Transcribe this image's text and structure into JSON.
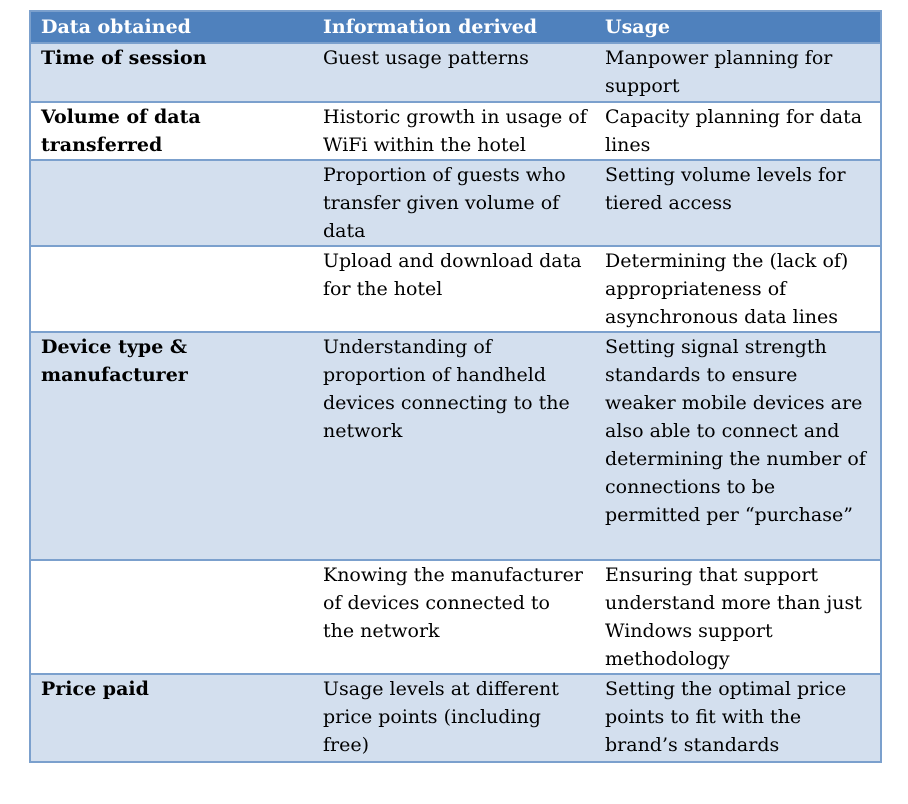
{
  "headers": [
    "Data obtained",
    "Information derived",
    "Usage"
  ],
  "rows": [
    {
      "data": "Time of session",
      "info": "Guest usage patterns",
      "usage": "Manpower planning for support"
    },
    {
      "data": "Volume of data transferred",
      "info": "Historic growth in usage of WiFi within the hotel",
      "usage": "Capacity planning for data lines"
    },
    {
      "data": "",
      "info": "Proportion of guests who transfer given volume of data",
      "usage": "Setting volume levels for tiered access"
    },
    {
      "data": "",
      "info": "Upload and download data for the hotel",
      "usage": "Determining the (lack of) appropriateness of asynchronous data lines"
    },
    {
      "data": "Device type & manufacturer",
      "info": "Understanding of proportion of handheld devices connecting to the network",
      "usage": "Setting signal strength standards to ensure weaker mobile devices are also able to connect and determining the number of connections to be permitted per “purchase”"
    },
    {
      "data": "",
      "info": "Knowing the manufacturer of devices connected to the network",
      "usage": "Ensuring that support understand more than just Windows support methodology"
    },
    {
      "data": "Price paid",
      "info": "Usage levels at different price points (including free)",
      "usage": "Setting the optimal price points to fit with the brand’s standards"
    }
  ]
}
